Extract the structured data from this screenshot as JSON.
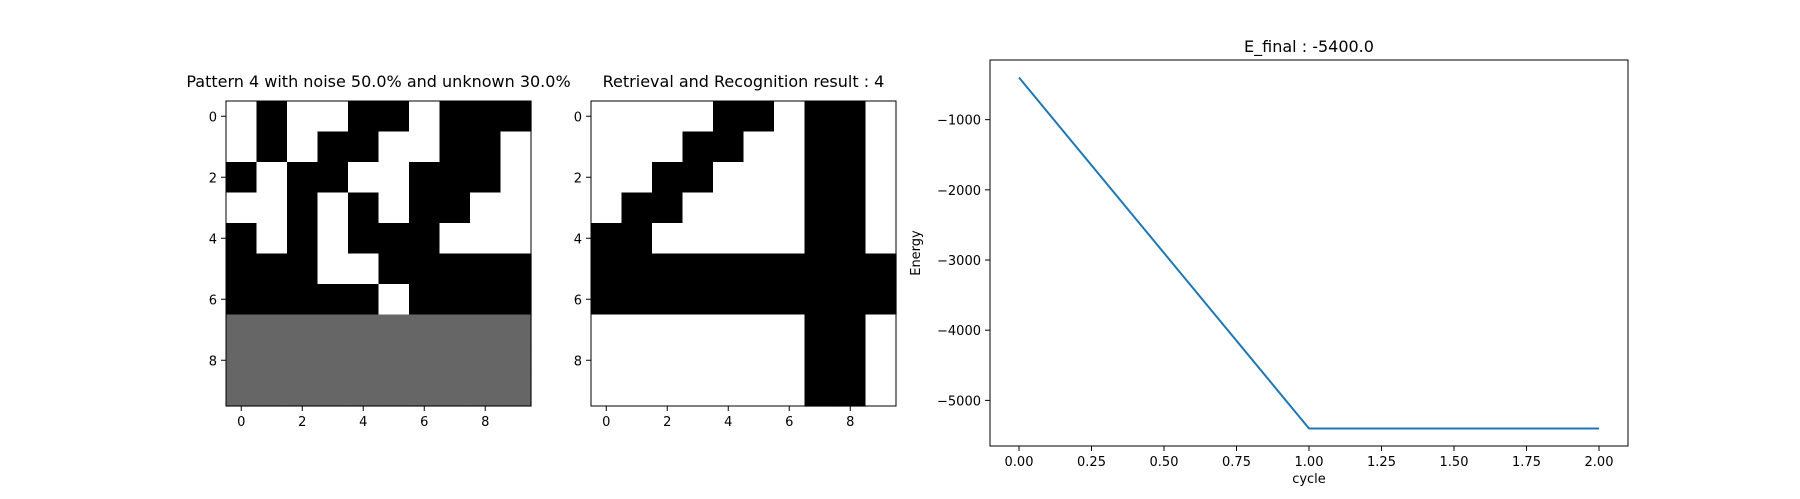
{
  "chart_data": [
    {
      "type": "heatmap",
      "title": "Pattern 4 with noise 50.0% and unknown 30.0%",
      "xticks": [
        0,
        2,
        4,
        6,
        8
      ],
      "yticks": [
        0,
        2,
        4,
        6,
        8
      ],
      "colormap": {
        "1": "#000000",
        "0": "#ffffff",
        "-1": "#666666"
      },
      "grid": [
        [
          0,
          1,
          0,
          0,
          1,
          1,
          0,
          1,
          1,
          1
        ],
        [
          0,
          1,
          0,
          1,
          1,
          0,
          0,
          1,
          1,
          0
        ],
        [
          1,
          0,
          1,
          1,
          0,
          0,
          1,
          1,
          1,
          0
        ],
        [
          0,
          0,
          1,
          0,
          1,
          0,
          1,
          1,
          0,
          0
        ],
        [
          1,
          0,
          1,
          0,
          1,
          1,
          1,
          0,
          0,
          0
        ],
        [
          1,
          1,
          1,
          0,
          0,
          1,
          1,
          1,
          1,
          1
        ],
        [
          1,
          1,
          1,
          1,
          1,
          0,
          1,
          1,
          1,
          1
        ],
        [
          -1,
          -1,
          -1,
          -1,
          -1,
          -1,
          -1,
          -1,
          -1,
          -1
        ],
        [
          -1,
          -1,
          -1,
          -1,
          -1,
          -1,
          -1,
          -1,
          -1,
          -1
        ],
        [
          -1,
          -1,
          -1,
          -1,
          -1,
          -1,
          -1,
          -1,
          -1,
          -1
        ]
      ]
    },
    {
      "type": "heatmap",
      "title": "Retrieval and Recognition result : 4",
      "xticks": [
        0,
        2,
        4,
        6,
        8
      ],
      "yticks": [
        0,
        2,
        4,
        6,
        8
      ],
      "colormap": {
        "1": "#000000",
        "0": "#ffffff",
        "-1": "#666666"
      },
      "grid": [
        [
          0,
          0,
          0,
          0,
          1,
          1,
          0,
          1,
          1,
          0
        ],
        [
          0,
          0,
          0,
          1,
          1,
          0,
          0,
          1,
          1,
          0
        ],
        [
          0,
          0,
          1,
          1,
          0,
          0,
          0,
          1,
          1,
          0
        ],
        [
          0,
          1,
          1,
          0,
          0,
          0,
          0,
          1,
          1,
          0
        ],
        [
          1,
          1,
          0,
          0,
          0,
          0,
          0,
          1,
          1,
          0
        ],
        [
          1,
          1,
          1,
          1,
          1,
          1,
          1,
          1,
          1,
          1
        ],
        [
          1,
          1,
          1,
          1,
          1,
          1,
          1,
          1,
          1,
          1
        ],
        [
          0,
          0,
          0,
          0,
          0,
          0,
          0,
          1,
          1,
          0
        ],
        [
          0,
          0,
          0,
          0,
          0,
          0,
          0,
          1,
          1,
          0
        ],
        [
          0,
          0,
          0,
          0,
          0,
          0,
          0,
          1,
          1,
          0
        ]
      ]
    },
    {
      "type": "line",
      "title": "E_final : -5400.0",
      "xlabel": "cycle",
      "ylabel": "Energy",
      "x": [
        0,
        1,
        2
      ],
      "series": [
        {
          "values": [
            -400,
            -5400,
            -5400
          ],
          "color": "#1f77b4"
        }
      ],
      "xlim": [
        -0.1,
        2.1
      ],
      "ylim": [
        -5650,
        -150
      ],
      "xticks": [
        0.0,
        0.25,
        0.5,
        0.75,
        1.0,
        1.25,
        1.5,
        1.75,
        2.0
      ],
      "xtick_labels": [
        "0.00",
        "0.25",
        "0.50",
        "0.75",
        "1.00",
        "1.25",
        "1.50",
        "1.75",
        "2.00"
      ],
      "yticks": [
        -1000,
        -2000,
        -3000,
        -4000,
        -5000
      ],
      "ytick_labels": [
        "−1000",
        "−2000",
        "−3000",
        "−4000",
        "−5000"
      ]
    }
  ]
}
